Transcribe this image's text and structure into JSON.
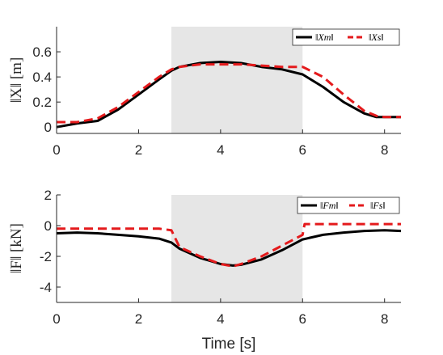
{
  "chart_data": [
    {
      "type": "line",
      "ylabel": "‖X‖ [m]",
      "xlim": [
        0,
        8.4
      ],
      "ylim": [
        -0.05,
        0.8
      ],
      "xticks": [
        "0",
        "2",
        "4",
        "6",
        "8"
      ],
      "yticks": [
        "0",
        "0.2",
        "0.4",
        "0.6"
      ],
      "shaded_x_range": [
        2.8,
        6.0
      ],
      "legend_position": "top-right",
      "series": [
        {
          "name": "‖Xm‖",
          "style": "solid",
          "color": "#000000",
          "x": [
            0,
            0.5,
            1.0,
            1.5,
            2.0,
            2.5,
            2.8,
            3.0,
            3.5,
            4.0,
            4.5,
            5.0,
            5.5,
            6.0,
            6.5,
            7.0,
            7.5,
            7.8,
            8.0,
            8.4
          ],
          "y": [
            0.0,
            0.03,
            0.05,
            0.14,
            0.26,
            0.38,
            0.45,
            0.48,
            0.51,
            0.52,
            0.51,
            0.48,
            0.46,
            0.42,
            0.32,
            0.2,
            0.11,
            0.08,
            0.08,
            0.08
          ]
        },
        {
          "name": "‖Xs‖",
          "style": "dashed",
          "color": "#e41a1c",
          "x": [
            0,
            0.5,
            1.0,
            1.5,
            2.0,
            2.5,
            2.8,
            3.0,
            3.5,
            4.0,
            4.5,
            5.0,
            5.5,
            6.0,
            6.5,
            7.0,
            7.5,
            7.8,
            8.0,
            8.4
          ],
          "y": [
            0.04,
            0.04,
            0.07,
            0.16,
            0.28,
            0.4,
            0.46,
            0.48,
            0.5,
            0.5,
            0.5,
            0.49,
            0.48,
            0.48,
            0.4,
            0.26,
            0.13,
            0.09,
            0.08,
            0.08
          ]
        }
      ]
    },
    {
      "type": "line",
      "ylabel": "‖F‖ [kN]",
      "xlabel": "Time [s]",
      "xlim": [
        0,
        8.4
      ],
      "ylim": [
        -5,
        2
      ],
      "xticks": [
        "0",
        "2",
        "4",
        "6",
        "8"
      ],
      "yticks": [
        "-4",
        "-2",
        "0",
        "2"
      ],
      "shaded_x_range": [
        2.8,
        6.0
      ],
      "legend_position": "top-right",
      "series": [
        {
          "name": "‖Fm‖",
          "style": "solid",
          "color": "#000000",
          "x": [
            0,
            0.5,
            1.0,
            1.5,
            2.0,
            2.5,
            2.8,
            3.0,
            3.5,
            4.0,
            4.3,
            4.5,
            5.0,
            5.5,
            6.0,
            6.5,
            7.0,
            7.5,
            8.0,
            8.4
          ],
          "y": [
            -0.5,
            -0.45,
            -0.5,
            -0.6,
            -0.7,
            -0.85,
            -1.1,
            -1.5,
            -2.1,
            -2.5,
            -2.6,
            -2.55,
            -2.2,
            -1.6,
            -0.9,
            -0.6,
            -0.45,
            -0.35,
            -0.3,
            -0.35
          ]
        },
        {
          "name": "‖Fs‖",
          "style": "dashed",
          "color": "#e41a1c",
          "x": [
            0,
            0.5,
            1.0,
            1.5,
            2.0,
            2.5,
            2.8,
            3.0,
            3.5,
            4.0,
            4.3,
            4.5,
            5.0,
            5.5,
            6.0,
            6.05,
            6.5,
            7.0,
            7.5,
            8.0,
            8.4
          ],
          "y": [
            -0.2,
            -0.2,
            -0.2,
            -0.2,
            -0.2,
            -0.2,
            -0.3,
            -1.4,
            -2.0,
            -2.5,
            -2.65,
            -2.5,
            -2.0,
            -1.3,
            -0.6,
            0.1,
            0.1,
            0.1,
            0.1,
            0.1,
            0.1
          ]
        }
      ]
    }
  ]
}
